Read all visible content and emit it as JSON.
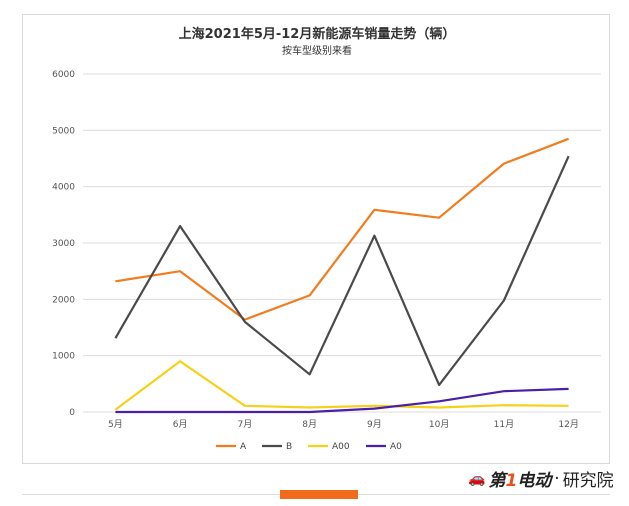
{
  "chart_data": {
    "type": "line",
    "title": "上海2021年5月-12月新能源车销量走势（辆）",
    "subtitle": "按车型级别来看",
    "categories": [
      "5月",
      "6月",
      "7月",
      "8月",
      "9月",
      "10月",
      "11月",
      "12月"
    ],
    "ylim": [
      0,
      6000
    ],
    "yticks": [
      "0",
      "1000",
      "2000",
      "3000",
      "4000",
      "5000",
      "6000"
    ],
    "grid": true,
    "legend_position": "bottom",
    "series": [
      {
        "name": "A",
        "color": "#f07d1f",
        "values": [
          2320,
          2500,
          1640,
          2070,
          3590,
          3450,
          4410,
          4850
        ]
      },
      {
        "name": "B",
        "color": "#4a4a4a",
        "values": [
          1310,
          3300,
          1600,
          670,
          3130,
          480,
          1980,
          4540
        ]
      },
      {
        "name": "A00",
        "color": "#f5d11b",
        "values": [
          40,
          900,
          110,
          80,
          110,
          80,
          120,
          110
        ]
      },
      {
        "name": "A0",
        "color": "#4b1fa8",
        "values": [
          0,
          0,
          0,
          0,
          60,
          190,
          370,
          410
        ]
      }
    ]
  },
  "footer": {
    "brand_prefix": "第",
    "brand_one": "1",
    "brand_suffix": "电动",
    "separator": "·",
    "institute": "研究院",
    "accent_color": "#f26b1d"
  }
}
